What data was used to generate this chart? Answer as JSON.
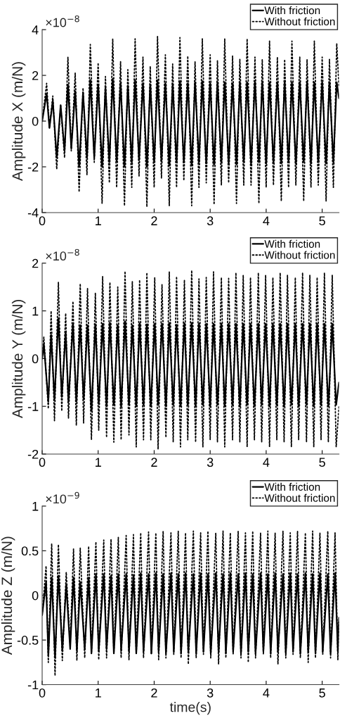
{
  "chart_data": [
    {
      "type": "line",
      "ylabel": "Amplitude X (m/N)",
      "annotations": [
        "×10$^{−8}$"
      ],
      "xlim": [
        0,
        5.3
      ],
      "xticks": [
        0,
        1,
        2,
        3,
        4,
        5
      ],
      "ylim": [
        -4,
        4
      ],
      "yticks": [
        -4,
        -2,
        0,
        2,
        4
      ],
      "grid": false,
      "legend": "top right",
      "series": [
        {
          "name": "With friction",
          "color": "#000000",
          "line_style": "solid",
          "x": [
            0,
            0.08,
            0.13,
            0.19,
            0.26,
            0.33,
            0.4,
            0.46,
            0.52,
            0.59,
            0.66,
            0.73,
            0.8,
            0.86,
            0.93,
            1.0,
            1.07,
            1.13,
            1.2,
            1.26,
            1.33,
            1.4,
            1.47,
            1.53,
            1.6,
            1.66,
            1.73,
            1.8,
            1.87,
            1.93,
            2.0,
            2.06,
            2.13,
            2.2,
            2.27,
            2.33,
            2.4,
            2.46,
            2.53,
            2.6,
            2.67,
            2.73,
            2.8,
            2.86,
            2.93,
            3.0,
            3.07,
            3.13,
            3.2,
            3.26,
            3.33,
            3.4,
            3.47,
            3.53,
            3.6,
            3.66,
            3.73,
            3.8,
            3.87,
            3.93,
            4.0,
            4.06,
            4.13,
            4.2,
            4.27,
            4.33,
            4.4,
            4.46,
            4.53,
            4.6,
            4.67,
            4.73,
            4.8,
            4.86,
            4.93,
            5.0,
            5.07,
            5.13,
            5.2,
            5.26,
            5.3
          ],
          "values": [
            0,
            1.2,
            -0.3,
            0.9,
            -1.6,
            0.7,
            -1.3,
            1.6,
            -1.2,
            1.3,
            -2.0,
            1.25,
            -1.6,
            1.8,
            -1.6,
            1.6,
            -2.0,
            1.45,
            -1.8,
            1.85,
            -1.75,
            1.65,
            -2.0,
            1.55,
            -1.8,
            1.8,
            -1.7,
            1.65,
            -2.0,
            1.6,
            -1.8,
            1.8,
            -1.75,
            1.65,
            -1.95,
            1.6,
            -1.8,
            1.75,
            -1.8,
            1.65,
            -1.95,
            1.7,
            -1.8,
            1.75,
            -1.85,
            1.65,
            -1.9,
            1.7,
            -1.8,
            1.7,
            -1.85,
            1.65,
            -1.9,
            1.7,
            -1.8,
            1.7,
            -1.85,
            1.7,
            -1.8,
            1.7,
            -1.85,
            1.7,
            -1.8,
            1.7,
            -1.85,
            1.7,
            -1.8,
            1.7,
            -1.85,
            1.7,
            -1.8,
            1.7,
            -1.85,
            1.7,
            -1.8,
            1.7,
            -1.85,
            1.7,
            -1.8,
            1.7,
            1.0
          ]
        },
        {
          "name": "Without friction",
          "color": "#000000",
          "line_style": "dotted",
          "x": [
            0,
            0.08,
            0.13,
            0.19,
            0.26,
            0.33,
            0.4,
            0.46,
            0.52,
            0.59,
            0.66,
            0.73,
            0.8,
            0.86,
            0.93,
            1.0,
            1.07,
            1.13,
            1.2,
            1.26,
            1.33,
            1.4,
            1.47,
            1.53,
            1.6,
            1.66,
            1.73,
            1.8,
            1.87,
            1.93,
            2.0,
            2.06,
            2.13,
            2.2,
            2.27,
            2.33,
            2.4,
            2.46,
            2.53,
            2.6,
            2.67,
            2.73,
            2.8,
            2.86,
            2.93,
            3.0,
            3.07,
            3.13,
            3.2,
            3.26,
            3.33,
            3.4,
            3.47,
            3.53,
            3.6,
            3.66,
            3.73,
            3.8,
            3.87,
            3.93,
            4.0,
            4.06,
            4.13,
            4.2,
            4.27,
            4.33,
            4.4,
            4.46,
            4.53,
            4.6,
            4.67,
            4.73,
            4.8,
            4.86,
            4.93,
            5.0,
            5.07,
            5.13,
            5.2,
            5.26,
            5.3
          ],
          "values": [
            0,
            1.65,
            -0.3,
            1.1,
            -2.1,
            0.7,
            -1.6,
            2.8,
            -1.3,
            2.1,
            -3.1,
            1.45,
            -2.35,
            3.35,
            -1.8,
            2.55,
            -3.6,
            1.95,
            -2.7,
            3.6,
            -2.9,
            2.6,
            -3.7,
            2.25,
            -2.9,
            3.6,
            -2.4,
            2.8,
            -3.75,
            2.4,
            -2.9,
            3.7,
            -2.5,
            2.9,
            -3.7,
            2.5,
            -2.9,
            3.65,
            -2.6,
            2.85,
            -3.7,
            2.6,
            -2.9,
            3.6,
            -2.7,
            2.9,
            -3.65,
            2.65,
            -2.8,
            3.6,
            -2.7,
            2.85,
            -3.6,
            2.7,
            -2.8,
            3.6,
            -2.8,
            2.8,
            -3.6,
            2.7,
            -2.9,
            3.5,
            -2.8,
            2.8,
            -3.5,
            2.7,
            -2.9,
            3.5,
            -2.8,
            2.8,
            -3.5,
            2.7,
            -2.9,
            3.5,
            -2.8,
            2.8,
            -3.5,
            2.7,
            -2.9,
            3.4,
            1.5
          ]
        }
      ]
    },
    {
      "type": "line",
      "ylabel": "Amplitude Y (m/N)",
      "annotations": [
        "×10$^{−8}$"
      ],
      "xlim": [
        0,
        5.3
      ],
      "xticks": [
        0,
        1,
        2,
        3,
        4,
        5
      ],
      "ylim": [
        -2,
        2
      ],
      "yticks": [
        -2,
        -1,
        0,
        1,
        2
      ],
      "grid": false,
      "legend": "top right",
      "series": [
        {
          "name": "With friction",
          "color": "#000000",
          "line_style": "solid",
          "x": [
            0,
            0.03,
            0.11,
            0.16,
            0.22,
            0.29,
            0.35,
            0.42,
            0.47,
            0.55,
            0.61,
            0.68,
            0.74,
            0.81,
            0.88,
            0.95,
            1.01,
            1.08,
            1.15,
            1.21,
            1.28,
            1.35,
            1.41,
            1.48,
            1.55,
            1.61,
            1.68,
            1.74,
            1.81,
            1.87,
            1.94,
            2.01,
            2.07,
            2.14,
            2.21,
            2.27,
            2.34,
            2.4,
            2.47,
            2.54,
            2.6,
            2.67,
            2.74,
            2.8,
            2.87,
            2.93,
            3.0,
            3.06,
            3.13,
            3.2,
            3.26,
            3.33,
            3.4,
            3.46,
            3.53,
            3.59,
            3.66,
            3.72,
            3.79,
            3.86,
            3.92,
            3.99,
            4.06,
            4.12,
            4.19,
            4.25,
            4.32,
            4.38,
            4.45,
            4.52,
            4.58,
            4.65,
            4.72,
            4.78,
            4.85,
            4.91,
            4.98,
            5.04,
            5.11,
            5.18,
            5.25,
            5.3
          ],
          "values": [
            0,
            0.3,
            -0.9,
            0.5,
            -0.85,
            0.85,
            -0.8,
            0.55,
            -0.9,
            0.72,
            -0.9,
            0.7,
            -0.85,
            0.7,
            -1.1,
            0.72,
            -0.95,
            0.73,
            -1.0,
            0.75,
            -0.97,
            0.7,
            -1.0,
            0.78,
            -0.97,
            0.7,
            -1.0,
            0.74,
            -0.97,
            0.72,
            -1.0,
            0.73,
            -0.97,
            0.73,
            -1.0,
            0.75,
            -0.97,
            0.71,
            -1.0,
            0.74,
            -0.97,
            0.75,
            -1.0,
            0.73,
            -0.97,
            0.73,
            -1.0,
            0.73,
            -0.97,
            0.73,
            -1.0,
            0.73,
            -0.97,
            0.73,
            -1.0,
            0.73,
            -0.97,
            0.73,
            -1.0,
            0.73,
            -0.97,
            0.73,
            -1.0,
            0.73,
            -0.97,
            0.73,
            -1.0,
            0.73,
            -0.97,
            0.73,
            -1.0,
            0.73,
            -0.97,
            0.73,
            -1.0,
            0.73,
            -0.97,
            0.73,
            -1.0,
            0.73,
            -0.97,
            -0.5
          ]
        },
        {
          "name": "Without friction",
          "color": "#000000",
          "line_style": "dotted",
          "x": [
            0,
            0.03,
            0.11,
            0.16,
            0.22,
            0.29,
            0.35,
            0.42,
            0.47,
            0.55,
            0.61,
            0.68,
            0.74,
            0.81,
            0.88,
            0.95,
            1.01,
            1.08,
            1.15,
            1.21,
            1.28,
            1.35,
            1.41,
            1.48,
            1.55,
            1.61,
            1.68,
            1.74,
            1.81,
            1.87,
            1.94,
            2.01,
            2.07,
            2.14,
            2.21,
            2.27,
            2.34,
            2.4,
            2.47,
            2.54,
            2.6,
            2.67,
            2.74,
            2.8,
            2.87,
            2.93,
            3.0,
            3.06,
            3.13,
            3.2,
            3.26,
            3.33,
            3.4,
            3.46,
            3.53,
            3.59,
            3.66,
            3.72,
            3.79,
            3.86,
            3.92,
            3.99,
            4.06,
            4.12,
            4.19,
            4.25,
            4.32,
            4.38,
            4.45,
            4.52,
            4.58,
            4.65,
            4.72,
            4.78,
            4.85,
            4.91,
            4.98,
            5.04,
            5.11,
            5.18,
            5.25,
            5.3
          ],
          "values": [
            0,
            0.45,
            -1.05,
            1.0,
            -1.3,
            1.6,
            -1.1,
            0.95,
            -1.25,
            1.2,
            -1.4,
            1.57,
            -1.35,
            1.47,
            -1.7,
            1.38,
            -1.5,
            1.72,
            -1.65,
            1.6,
            -1.75,
            1.5,
            -1.7,
            1.83,
            -1.6,
            1.62,
            -1.85,
            1.65,
            -1.7,
            1.8,
            -1.7,
            1.7,
            -1.9,
            1.55,
            -1.65,
            1.82,
            -1.75,
            1.72,
            -1.85,
            1.65,
            -1.7,
            1.85,
            -1.75,
            1.67,
            -1.85,
            1.7,
            -1.7,
            1.82,
            -1.75,
            1.7,
            -1.85,
            1.68,
            -1.7,
            1.8,
            -1.75,
            1.75,
            -1.85,
            1.7,
            -1.7,
            1.8,
            -1.75,
            1.75,
            -1.85,
            1.7,
            -1.7,
            1.8,
            -1.75,
            1.75,
            -1.85,
            1.7,
            -1.7,
            1.8,
            -1.75,
            1.75,
            -1.85,
            1.7,
            -1.7,
            1.8,
            -1.75,
            1.75,
            -1.85,
            -1.0
          ]
        }
      ]
    },
    {
      "type": "line",
      "xlabel": "time(s)",
      "ylabel": "Amplitude Z (m/N)",
      "annotations": [
        "×10$^{−9}$"
      ],
      "xlim": [
        0,
        5.3
      ],
      "xticks": [
        0,
        1,
        2,
        3,
        4,
        5
      ],
      "ylim": [
        -1,
        1
      ],
      "yticks": [
        -1,
        -0.5,
        0,
        0.5,
        1
      ],
      "grid": false,
      "legend": "top right",
      "series": [
        {
          "name": "With friction",
          "color": "#000000",
          "line_style": "solid",
          "x": [
            0,
            0.07,
            0.11,
            0.17,
            0.23,
            0.29,
            0.36,
            0.43,
            0.5,
            0.56,
            0.62,
            0.68,
            0.76,
            0.83,
            0.88,
            0.96,
            1.01,
            1.1,
            1.15,
            1.23,
            1.28,
            1.36,
            1.41,
            1.5,
            1.55,
            1.63,
            1.68,
            1.76,
            1.81,
            1.9,
            1.95,
            2.03,
            2.08,
            2.16,
            2.21,
            2.3,
            2.35,
            2.43,
            2.48,
            2.56,
            2.61,
            2.7,
            2.75,
            2.83,
            2.88,
            2.96,
            3.01,
            3.1,
            3.15,
            3.23,
            3.28,
            3.36,
            3.41,
            3.5,
            3.55,
            3.63,
            3.68,
            3.76,
            3.81,
            3.9,
            3.95,
            4.03,
            4.08,
            4.16,
            4.21,
            4.3,
            4.35,
            4.43,
            4.48,
            4.56,
            4.61,
            4.7,
            4.75,
            4.83,
            4.88,
            4.96,
            5.01,
            5.1,
            5.15,
            5.23,
            5.28,
            5.3
          ],
          "values": [
            -0.22,
            0.15,
            -0.68,
            0.2,
            -0.7,
            0.22,
            -0.62,
            0.12,
            -0.6,
            0.2,
            -0.62,
            0.15,
            -0.6,
            0.2,
            -0.65,
            0.24,
            -0.62,
            0.24,
            -0.6,
            0.22,
            -0.65,
            0.24,
            -0.62,
            0.24,
            -0.63,
            0.23,
            -0.65,
            0.25,
            -0.63,
            0.24,
            -0.65,
            0.25,
            -0.63,
            0.24,
            -0.65,
            0.25,
            -0.63,
            0.24,
            -0.65,
            0.25,
            -0.63,
            0.24,
            -0.65,
            0.25,
            -0.63,
            0.24,
            -0.65,
            0.25,
            -0.63,
            0.24,
            -0.65,
            0.25,
            -0.63,
            0.24,
            -0.65,
            0.25,
            -0.63,
            0.24,
            -0.65,
            0.25,
            -0.63,
            0.24,
            -0.65,
            0.25,
            -0.63,
            0.24,
            -0.65,
            0.25,
            -0.63,
            0.24,
            -0.65,
            0.25,
            -0.63,
            0.24,
            -0.65,
            0.25,
            -0.63,
            0.24,
            -0.65,
            0.25,
            -0.63,
            -0.25
          ]
        },
        {
          "name": "Without friction",
          "color": "#000000",
          "line_style": "dotted",
          "x": [
            0,
            0.07,
            0.11,
            0.17,
            0.23,
            0.29,
            0.36,
            0.43,
            0.5,
            0.56,
            0.62,
            0.68,
            0.76,
            0.83,
            0.88,
            0.96,
            1.01,
            1.1,
            1.15,
            1.23,
            1.28,
            1.36,
            1.41,
            1.5,
            1.55,
            1.63,
            1.68,
            1.76,
            1.81,
            1.9,
            1.95,
            2.03,
            2.08,
            2.16,
            2.21,
            2.3,
            2.35,
            2.43,
            2.48,
            2.56,
            2.61,
            2.7,
            2.75,
            2.83,
            2.88,
            2.96,
            3.01,
            3.1,
            3.15,
            3.23,
            3.28,
            3.36,
            3.41,
            3.5,
            3.55,
            3.63,
            3.68,
            3.76,
            3.81,
            3.9,
            3.95,
            4.03,
            4.08,
            4.16,
            4.21,
            4.3,
            4.35,
            4.43,
            4.48,
            4.56,
            4.61,
            4.7,
            4.75,
            4.83,
            4.88,
            4.96,
            5.01,
            5.1,
            5.15,
            5.23,
            5.28,
            5.3
          ],
          "values": [
            -0.22,
            0.33,
            -0.75,
            0.58,
            -0.9,
            0.57,
            -0.73,
            0.26,
            -0.55,
            0.52,
            -0.73,
            0.53,
            -0.7,
            0.55,
            -0.65,
            0.6,
            -0.72,
            0.62,
            -0.7,
            0.63,
            -0.65,
            0.65,
            -0.7,
            0.67,
            -0.72,
            0.68,
            -0.66,
            0.7,
            -0.7,
            0.71,
            -0.66,
            0.7,
            -0.72,
            0.72,
            -0.7,
            0.7,
            -0.66,
            0.72,
            -0.7,
            0.7,
            -0.77,
            0.72,
            -0.7,
            0.7,
            -0.66,
            0.72,
            -0.7,
            0.7,
            -0.77,
            0.72,
            -0.7,
            0.7,
            -0.66,
            0.72,
            -0.7,
            0.7,
            -0.75,
            0.72,
            -0.7,
            0.7,
            -0.66,
            0.72,
            -0.7,
            0.7,
            -0.77,
            0.72,
            -0.7,
            0.7,
            -0.66,
            0.72,
            -0.7,
            0.7,
            -0.75,
            0.72,
            -0.7,
            0.7,
            -0.66,
            0.72,
            -0.7,
            0.7,
            -0.72,
            -0.3
          ]
        }
      ]
    }
  ]
}
